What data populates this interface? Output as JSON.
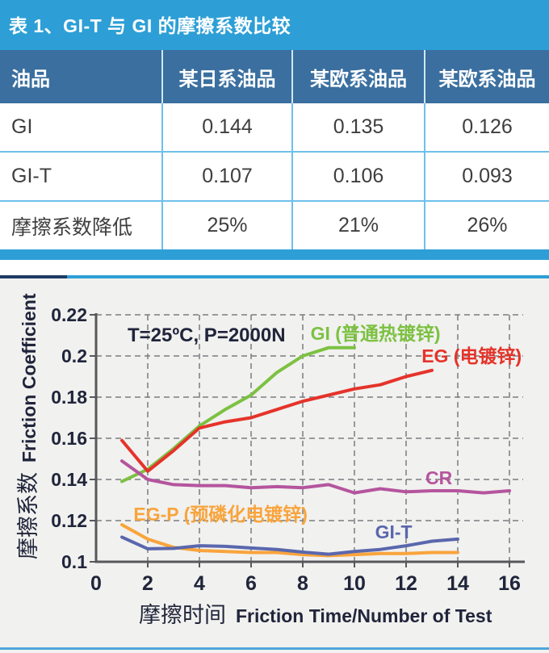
{
  "table": {
    "title": "表 1、GI-T 与 GI 的摩擦系数比较",
    "header": [
      "油品",
      "某日系油品",
      "某欧系油品",
      "某欧系油品"
    ],
    "rows": [
      {
        "label": "GI",
        "cells": [
          "0.144",
          "0.135",
          "0.126"
        ]
      },
      {
        "label": "GI-T",
        "cells": [
          "0.107",
          "0.106",
          "0.093"
        ]
      },
      {
        "label": "摩擦系数降低",
        "cells": [
          "25%",
          "21%",
          "26%"
        ]
      }
    ],
    "colors": {
      "title_bg": "#2d9fd6",
      "header_bg": "#3a6f9f",
      "divider": "#6ec0ea",
      "bottom_bar": "#2d9fd6"
    }
  },
  "chart_data": {
    "type": "line",
    "annotation": "T=25ºC, P=2000N",
    "ylabel_cn": "摩擦系数",
    "ylabel_en": "Friction Coefficient",
    "xlabel_cn": "摩擦时间",
    "xlabel_en": "Friction Time/Number of Test",
    "xlim": [
      0,
      16.5
    ],
    "ylim": [
      0.1,
      0.22
    ],
    "x_ticks": [
      0,
      2,
      4,
      6,
      8,
      10,
      12,
      14,
      16
    ],
    "y_ticks": [
      0.1,
      0.12,
      0.14,
      0.16,
      0.18,
      0.2,
      0.22
    ],
    "grid": true,
    "panel_bg": "#f1f1ef",
    "axis_color": "#57585c",
    "grid_color": "#7b7c80",
    "series": [
      {
        "name": "GI",
        "label": "GI (普通热镀锌)",
        "color": "#7cc142",
        "x": [
          1,
          2,
          3,
          4,
          5,
          6,
          7,
          8,
          9,
          10
        ],
        "y": [
          0.139,
          0.145,
          0.155,
          0.166,
          0.174,
          0.181,
          0.192,
          0.2,
          0.204,
          0.204
        ],
        "label_pos": {
          "x": 8.3,
          "y": 0.2078
        }
      },
      {
        "name": "EG",
        "label": "EG (电镀锌)",
        "color": "#e5332a",
        "x": [
          1,
          2,
          3,
          4,
          5,
          6,
          7,
          8,
          9,
          10,
          11,
          12,
          13
        ],
        "y": [
          0.159,
          0.144,
          0.154,
          0.165,
          0.168,
          0.17,
          0.174,
          0.178,
          0.181,
          0.184,
          0.186,
          0.19,
          0.193
        ],
        "label_pos": {
          "x": 12.6,
          "y": 0.1968
        }
      },
      {
        "name": "CR",
        "label": "CR",
        "color": "#b5559e",
        "x": [
          1,
          2,
          3,
          4,
          5,
          6,
          7,
          8,
          9,
          10,
          11,
          12,
          13,
          14,
          15,
          16
        ],
        "y": [
          0.149,
          0.14,
          0.1375,
          0.137,
          0.137,
          0.136,
          0.1365,
          0.136,
          0.1375,
          0.1335,
          0.1355,
          0.134,
          0.1345,
          0.1345,
          0.1335,
          0.1345
        ],
        "label_pos": {
          "x": 12.75,
          "y": 0.1376
        }
      },
      {
        "name": "EG-P",
        "label": "EG-P (预磷化电镀锌)",
        "color": "#f9a43c",
        "x": [
          1,
          2,
          3,
          4,
          5,
          6,
          7,
          8,
          9,
          10,
          11,
          12,
          13,
          14
        ],
        "y": [
          0.118,
          0.111,
          0.107,
          0.1055,
          0.105,
          0.1045,
          0.1045,
          0.1035,
          0.103,
          0.1035,
          0.104,
          0.104,
          0.1045,
          0.1045
        ],
        "label_pos": {
          "x": 1.45,
          "y": 0.12
        }
      },
      {
        "name": "GI-T",
        "label": "GI-T",
        "color": "#5a67ad",
        "x": [
          1,
          2,
          3,
          4,
          5,
          6,
          7,
          8,
          9,
          10,
          11,
          12,
          13,
          14
        ],
        "y": [
          0.112,
          0.1063,
          0.1065,
          0.1078,
          0.1075,
          0.1067,
          0.106,
          0.1047,
          0.1037,
          0.105,
          0.106,
          0.1078,
          0.11,
          0.111
        ],
        "label_pos": {
          "x": 10.8,
          "y": 0.1114
        }
      }
    ]
  }
}
